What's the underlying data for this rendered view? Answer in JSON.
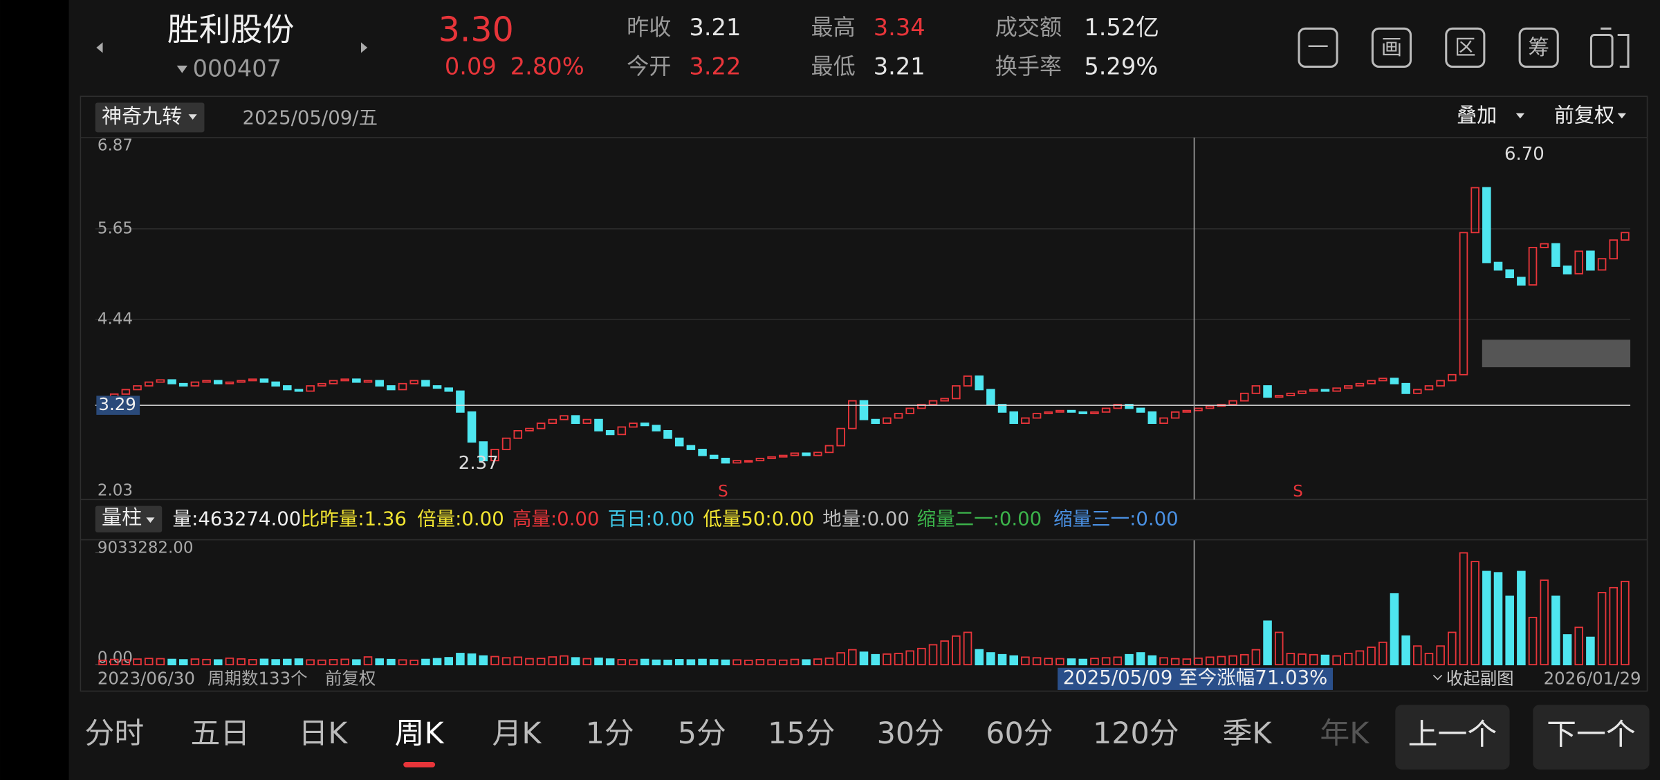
{
  "header": {
    "name": "胜利股份",
    "code": "000407",
    "price": "3.30",
    "change": "0.09",
    "change_pct": "2.80%",
    "up_color": "#e8353a",
    "stats": [
      {
        "label": "昨收",
        "value": "3.21",
        "color": "#e6e6e6"
      },
      {
        "label": "今开",
        "value": "3.22",
        "color": "#e8353a"
      },
      {
        "label": "最高",
        "value": "3.34",
        "color": "#e8353a"
      },
      {
        "label": "最低",
        "value": "3.21",
        "color": "#e6e6e6"
      },
      {
        "label": "成交额",
        "value": "1.52亿",
        "color": "#e6e6e6"
      },
      {
        "label": "换手率",
        "value": "5.29%",
        "color": "#e6e6e6"
      }
    ],
    "tools": [
      "一",
      "画",
      "区",
      "筹"
    ]
  },
  "chart_data": [
    {
      "type": "candlestick",
      "indicator": "神奇九转",
      "date": "2025/05/09/五",
      "overlay": "叠加",
      "adjust": "前复权",
      "ylim": [
        2.03,
        6.87
      ],
      "yticks": [
        6.87,
        5.65,
        4.44,
        2.03
      ],
      "crosshair": 3.29,
      "high": {
        "value": 6.7,
        "label": "6.70"
      },
      "low": 2.37,
      "signals": [
        "S",
        "S"
      ],
      "up_color": "#e8353a",
      "down_color": "#4ee6f0",
      "close": [
        3.38,
        3.44,
        3.5,
        3.55,
        3.6,
        3.63,
        3.58,
        3.55,
        3.6,
        3.62,
        3.58,
        3.6,
        3.62,
        3.64,
        3.6,
        3.55,
        3.5,
        3.48,
        3.55,
        3.58,
        3.62,
        3.64,
        3.6,
        3.62,
        3.55,
        3.5,
        3.58,
        3.62,
        3.55,
        3.52,
        3.48,
        3.2,
        2.8,
        2.55,
        2.7,
        2.85,
        2.95,
        2.98,
        3.05,
        3.1,
        3.15,
        3.05,
        3.1,
        2.95,
        2.9,
        3.0,
        3.05,
        3.02,
        2.95,
        2.85,
        2.75,
        2.7,
        2.62,
        2.58,
        2.52,
        2.55,
        2.55,
        2.58,
        2.6,
        2.62,
        2.65,
        2.62,
        2.66,
        2.75,
        2.98,
        3.35,
        3.1,
        3.05,
        3.12,
        3.18,
        3.25,
        3.3,
        3.35,
        3.38,
        3.55,
        3.68,
        3.5,
        3.3,
        3.2,
        3.05,
        3.12,
        3.18,
        3.2,
        3.22,
        3.2,
        3.18,
        3.2,
        3.25,
        3.3,
        3.25,
        3.2,
        3.05,
        3.12,
        3.2,
        3.22,
        3.25,
        3.28,
        3.3,
        3.35,
        3.45,
        3.55,
        3.4,
        3.42,
        3.45,
        3.48,
        3.5,
        3.48,
        3.52,
        3.55,
        3.58,
        3.62,
        3.65,
        3.58,
        3.45,
        3.5,
        3.55,
        3.62,
        3.7,
        5.6,
        6.2,
        5.2,
        5.1,
        5.0,
        4.9,
        5.4,
        5.45,
        5.15,
        5.05,
        5.35,
        5.1,
        5.25,
        5.5,
        5.6
      ]
    },
    {
      "type": "bar",
      "indicator": "量柱",
      "legend": [
        {
          "text": "量:463274.00",
          "color": "#f0f0f0"
        },
        {
          "text": "比昨量:1.36",
          "color": "#f2e531"
        },
        {
          "text": "倍量:0.00",
          "color": "#f2e531"
        },
        {
          "text": "高量:0.00",
          "color": "#e8353a"
        },
        {
          "text": "百日:0.00",
          "color": "#3fc8e8"
        },
        {
          "text": "低量50:0.00",
          "color": "#f2e531"
        },
        {
          "text": "地量:0.00",
          "color": "#bdbdbd"
        },
        {
          "text": "缩量二一:0.00",
          "color": "#3cb44b"
        },
        {
          "text": "缩量三一:0.00",
          "color": "#4a90e2"
        }
      ],
      "ylim": [
        0,
        9033282
      ],
      "yticks": [
        {
          "value": 9033282,
          "label": "9033282.00"
        },
        {
          "value": 0,
          "label": "0.00"
        }
      ],
      "values": [
        350000,
        420000,
        380000,
        450000,
        500000,
        480000,
        420000,
        390000,
        450000,
        410000,
        380000,
        520000,
        460000,
        400000,
        430000,
        390000,
        420000,
        450000,
        380000,
        360000,
        400000,
        430000,
        380000,
        620000,
        450000,
        410000,
        380000,
        350000,
        420000,
        480000,
        560000,
        900000,
        850000,
        700000,
        650000,
        550000,
        600000,
        480000,
        500000,
        620000,
        700000,
        550000,
        480000,
        520000,
        450000,
        400000,
        380000,
        420000,
        360000,
        350000,
        400000,
        380000,
        420000,
        390000,
        360000,
        380000,
        350000,
        400000,
        380000,
        360000,
        420000,
        380000,
        450000,
        520000,
        950000,
        1200000,
        1000000,
        800000,
        850000,
        900000,
        1100000,
        1300000,
        1600000,
        1900000,
        2300000,
        2600000,
        1200000,
        950000,
        800000,
        700000,
        600000,
        550000,
        500000,
        480000,
        450000,
        420000,
        500000,
        550000,
        600000,
        800000,
        950000,
        700000,
        550000,
        480000,
        450000,
        520000,
        600000,
        650000,
        700000,
        800000,
        1200000,
        3500000,
        2600000,
        900000,
        850000,
        800000,
        750000,
        700000,
        900000,
        1100000,
        1400000,
        1800000,
        5700000,
        2300000,
        1500000,
        900000,
        1500000,
        2600000,
        9000000,
        8300000,
        7500000,
        7400000,
        5500000,
        7500000,
        3800000,
        6800000,
        5500000,
        2400000,
        3000000,
        2200000,
        5800000,
        6200000,
        6700000
      ]
    }
  ],
  "footer": {
    "start": "2023/06/30",
    "periods": "周期数133个",
    "adjust": "前复权",
    "gain": "2025/05/09 至今涨幅71.03%",
    "collapse": "收起副图",
    "end": "2026/01/29"
  },
  "tabs": [
    "分时",
    "五日",
    "日K",
    "周K",
    "月K",
    "1分",
    "5分",
    "15分",
    "30分",
    "60分",
    "120分",
    "季K",
    "年K"
  ],
  "active_tab": 3,
  "buttons": [
    "上一个",
    "下一个"
  ]
}
